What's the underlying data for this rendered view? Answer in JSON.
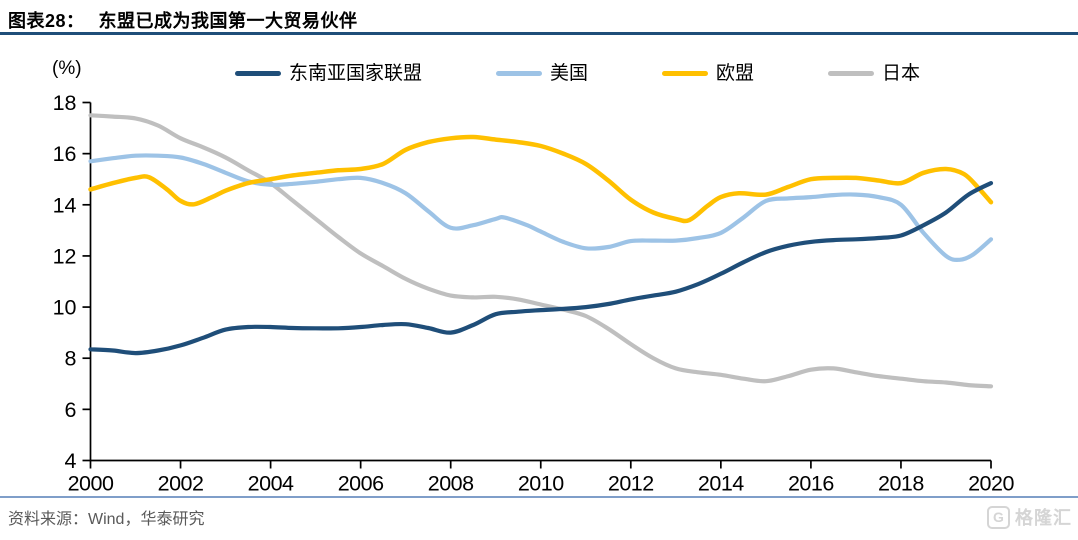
{
  "header": {
    "fig_label": "图表28：",
    "title": "东盟已成为我国第一大贸易伙伴"
  },
  "footer": {
    "source": "资料来源：Wind，华泰研究",
    "watermark_logo": "G",
    "watermark_text": "格隆汇"
  },
  "colors": {
    "title_rule": "#1f4e79",
    "footer_rule": "#7f9ec9",
    "source_text": "#595959",
    "axis": "#000000",
    "asean": "#1f4e79",
    "us": "#9dc3e6",
    "eu": "#ffc000",
    "japan": "#bfbfbf"
  },
  "chart_data": {
    "type": "line",
    "title": "东盟已成为我国第一大贸易伙伴",
    "unit_label": "(%)",
    "xlabel": "",
    "ylabel": "(%)",
    "xlim": [
      2000,
      2020
    ],
    "xtick_step": 2,
    "ylim": [
      4,
      18
    ],
    "ytick_step": 2,
    "grid": false,
    "legend_position": "top",
    "series": [
      {
        "name": "东南亚国家联盟",
        "color": "#1f4e79",
        "z": 4,
        "width": 4.2,
        "points": [
          [
            2000,
            8.35
          ],
          [
            2000.5,
            8.3
          ],
          [
            2001,
            8.2
          ],
          [
            2001.5,
            8.3
          ],
          [
            2002,
            8.5
          ],
          [
            2002.5,
            8.8
          ],
          [
            2003,
            9.12
          ],
          [
            2003.5,
            9.22
          ],
          [
            2004,
            9.22
          ],
          [
            2004.5,
            9.18
          ],
          [
            2005,
            9.17
          ],
          [
            2005.5,
            9.17
          ],
          [
            2006,
            9.22
          ],
          [
            2006.5,
            9.3
          ],
          [
            2007,
            9.33
          ],
          [
            2007.5,
            9.18
          ],
          [
            2008,
            9.0
          ],
          [
            2008.5,
            9.3
          ],
          [
            2009,
            9.72
          ],
          [
            2009.5,
            9.82
          ],
          [
            2010,
            9.88
          ],
          [
            2010.5,
            9.93
          ],
          [
            2011,
            10.0
          ],
          [
            2011.5,
            10.12
          ],
          [
            2012,
            10.3
          ],
          [
            2012.5,
            10.45
          ],
          [
            2013,
            10.6
          ],
          [
            2013.5,
            10.9
          ],
          [
            2014,
            11.3
          ],
          [
            2014.5,
            11.75
          ],
          [
            2015,
            12.15
          ],
          [
            2015.5,
            12.4
          ],
          [
            2016,
            12.55
          ],
          [
            2016.5,
            12.62
          ],
          [
            2017,
            12.65
          ],
          [
            2017.5,
            12.7
          ],
          [
            2018,
            12.8
          ],
          [
            2018.5,
            13.2
          ],
          [
            2019,
            13.7
          ],
          [
            2019.5,
            14.4
          ],
          [
            2020,
            14.85
          ]
        ]
      },
      {
        "name": "美国",
        "color": "#9dc3e6",
        "z": 2,
        "width": 4.2,
        "points": [
          [
            2000,
            15.7
          ],
          [
            2000.5,
            15.82
          ],
          [
            2001,
            15.92
          ],
          [
            2001.5,
            15.92
          ],
          [
            2002,
            15.85
          ],
          [
            2002.5,
            15.6
          ],
          [
            2003,
            15.25
          ],
          [
            2003.5,
            14.92
          ],
          [
            2004,
            14.78
          ],
          [
            2004.5,
            14.82
          ],
          [
            2005,
            14.9
          ],
          [
            2005.5,
            15.0
          ],
          [
            2006,
            15.05
          ],
          [
            2006.5,
            14.85
          ],
          [
            2007,
            14.45
          ],
          [
            2007.5,
            13.75
          ],
          [
            2008,
            13.1
          ],
          [
            2008.5,
            13.2
          ],
          [
            2009,
            13.45
          ],
          [
            2009.2,
            13.5
          ],
          [
            2009.7,
            13.2
          ],
          [
            2010,
            12.95
          ],
          [
            2010.5,
            12.55
          ],
          [
            2011,
            12.3
          ],
          [
            2011.5,
            12.35
          ],
          [
            2012,
            12.58
          ],
          [
            2012.5,
            12.6
          ],
          [
            2013,
            12.6
          ],
          [
            2013.5,
            12.7
          ],
          [
            2014,
            12.9
          ],
          [
            2014.5,
            13.5
          ],
          [
            2015,
            14.15
          ],
          [
            2015.5,
            14.25
          ],
          [
            2016,
            14.3
          ],
          [
            2016.5,
            14.38
          ],
          [
            2017,
            14.4
          ],
          [
            2017.5,
            14.3
          ],
          [
            2018,
            14.0
          ],
          [
            2018.5,
            12.9
          ],
          [
            2019,
            12.0
          ],
          [
            2019.3,
            11.85
          ],
          [
            2019.6,
            12.05
          ],
          [
            2020,
            12.65
          ]
        ]
      },
      {
        "name": "欧盟",
        "color": "#ffc000",
        "z": 3,
        "width": 4.5,
        "points": [
          [
            2000,
            14.6
          ],
          [
            2000.5,
            14.85
          ],
          [
            2001,
            15.05
          ],
          [
            2001.3,
            15.08
          ],
          [
            2001.7,
            14.6
          ],
          [
            2002,
            14.15
          ],
          [
            2002.3,
            14.02
          ],
          [
            2002.7,
            14.3
          ],
          [
            2003,
            14.55
          ],
          [
            2003.5,
            14.85
          ],
          [
            2004,
            15.0
          ],
          [
            2004.5,
            15.15
          ],
          [
            2005,
            15.25
          ],
          [
            2005.5,
            15.35
          ],
          [
            2006,
            15.4
          ],
          [
            2006.5,
            15.6
          ],
          [
            2007,
            16.15
          ],
          [
            2007.5,
            16.45
          ],
          [
            2008,
            16.6
          ],
          [
            2008.5,
            16.65
          ],
          [
            2009,
            16.55
          ],
          [
            2009.5,
            16.45
          ],
          [
            2010,
            16.3
          ],
          [
            2010.5,
            16.0
          ],
          [
            2011,
            15.6
          ],
          [
            2011.5,
            14.95
          ],
          [
            2012,
            14.2
          ],
          [
            2012.5,
            13.7
          ],
          [
            2013,
            13.45
          ],
          [
            2013.3,
            13.4
          ],
          [
            2013.7,
            13.95
          ],
          [
            2014,
            14.3
          ],
          [
            2014.4,
            14.45
          ],
          [
            2015,
            14.4
          ],
          [
            2015.5,
            14.7
          ],
          [
            2016,
            15.0
          ],
          [
            2016.5,
            15.05
          ],
          [
            2017,
            15.05
          ],
          [
            2017.5,
            14.95
          ],
          [
            2018,
            14.85
          ],
          [
            2018.5,
            15.25
          ],
          [
            2019,
            15.4
          ],
          [
            2019.4,
            15.2
          ],
          [
            2019.7,
            14.7
          ],
          [
            2020,
            14.1
          ]
        ]
      },
      {
        "name": "日本",
        "color": "#bfbfbf",
        "z": 1,
        "width": 4.2,
        "points": [
          [
            2000,
            17.5
          ],
          [
            2000.5,
            17.45
          ],
          [
            2001,
            17.38
          ],
          [
            2001.5,
            17.1
          ],
          [
            2002,
            16.6
          ],
          [
            2002.5,
            16.25
          ],
          [
            2003,
            15.85
          ],
          [
            2003.5,
            15.35
          ],
          [
            2004,
            14.85
          ],
          [
            2004.5,
            14.15
          ],
          [
            2005,
            13.45
          ],
          [
            2005.5,
            12.75
          ],
          [
            2006,
            12.1
          ],
          [
            2006.5,
            11.6
          ],
          [
            2007,
            11.1
          ],
          [
            2007.5,
            10.72
          ],
          [
            2008,
            10.45
          ],
          [
            2008.5,
            10.38
          ],
          [
            2009,
            10.4
          ],
          [
            2009.5,
            10.3
          ],
          [
            2010,
            10.1
          ],
          [
            2010.5,
            9.9
          ],
          [
            2011,
            9.65
          ],
          [
            2011.5,
            9.15
          ],
          [
            2012,
            8.55
          ],
          [
            2012.5,
            8.0
          ],
          [
            2013,
            7.6
          ],
          [
            2013.5,
            7.45
          ],
          [
            2014,
            7.35
          ],
          [
            2014.5,
            7.2
          ],
          [
            2015,
            7.1
          ],
          [
            2015.5,
            7.3
          ],
          [
            2016,
            7.55
          ],
          [
            2016.5,
            7.6
          ],
          [
            2017,
            7.45
          ],
          [
            2017.5,
            7.3
          ],
          [
            2018,
            7.2
          ],
          [
            2018.5,
            7.1
          ],
          [
            2019,
            7.05
          ],
          [
            2019.5,
            6.95
          ],
          [
            2020,
            6.9
          ]
        ]
      }
    ]
  }
}
